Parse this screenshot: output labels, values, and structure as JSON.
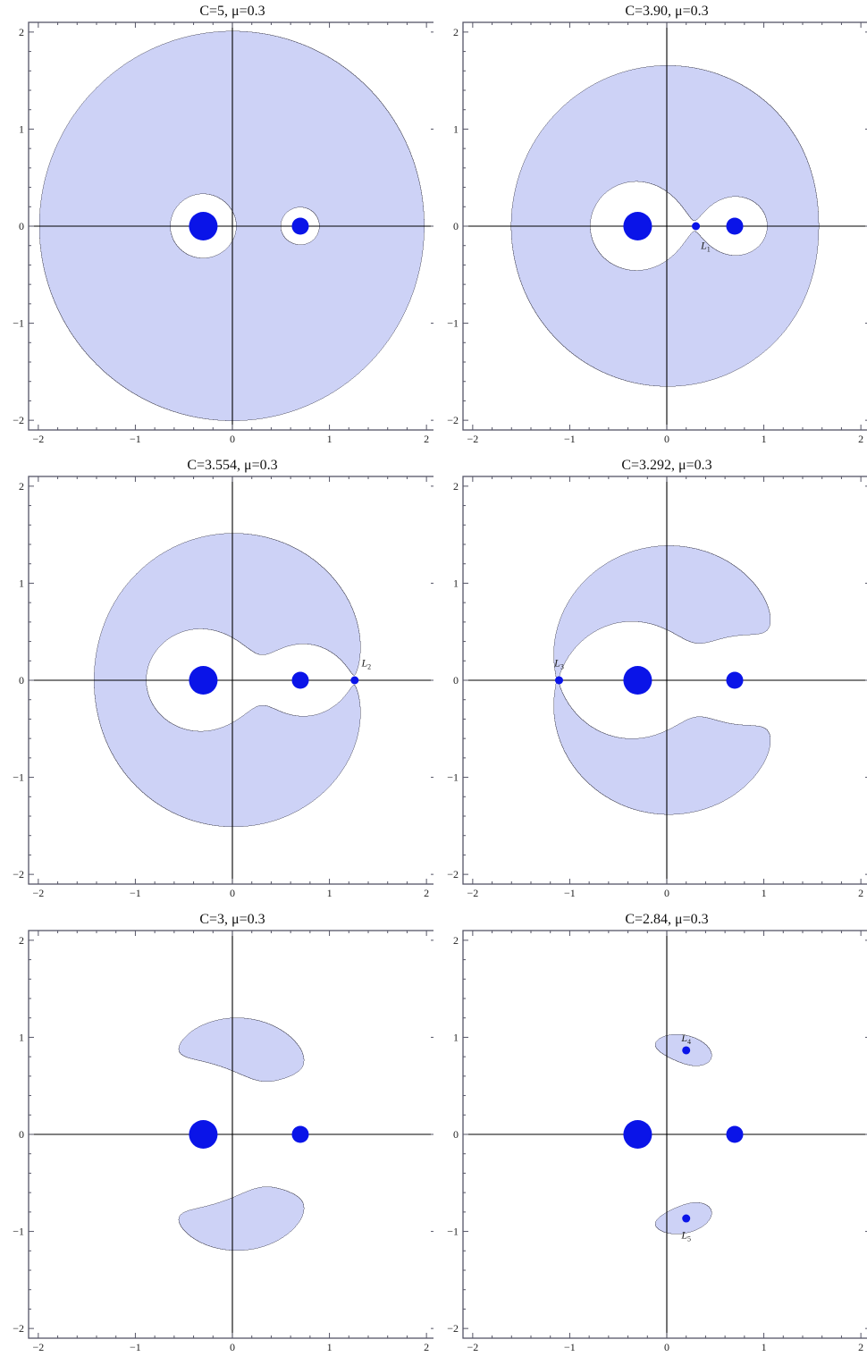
{
  "chart_data": [
    {
      "type": "contour",
      "title": "C=5, μ=0.3",
      "C": 5,
      "mu": 0.3,
      "xlim": [
        -2.1,
        2.1
      ],
      "ylim": [
        -2.1,
        2.1
      ],
      "xticks": [
        -2,
        -1,
        0,
        1,
        2
      ],
      "yticks": [
        -2,
        -1,
        0,
        1,
        2
      ],
      "tick_labels": [
        "−2",
        "−1",
        "0",
        "1",
        "2"
      ],
      "primaries": [
        {
          "x": -0.3,
          "label": ""
        },
        {
          "x": 0.7,
          "label": ""
        }
      ],
      "lagrange_points": []
    },
    {
      "type": "contour",
      "title": "C=3.90, μ=0.3",
      "C": 3.9,
      "mu": 0.3,
      "xlim": [
        -2.1,
        2.1
      ],
      "ylim": [
        -2.1,
        2.1
      ],
      "xticks": [
        -2,
        -1,
        0,
        1,
        2
      ],
      "yticks": [
        -2,
        -1,
        0,
        1,
        2
      ],
      "tick_labels": [
        "−2",
        "−1",
        "0",
        "1",
        "2"
      ],
      "primaries": [
        {
          "x": -0.3,
          "label": ""
        },
        {
          "x": 0.7,
          "label": ""
        }
      ],
      "lagrange_points": [
        {
          "name": "L",
          "sub": "1",
          "x": 0.3,
          "y": 0.0,
          "label_dx": 0.1,
          "label_dy": -0.2
        }
      ]
    },
    {
      "type": "contour",
      "title": "C=3.554, μ=0.3",
      "C": 3.554,
      "mu": 0.3,
      "xlim": [
        -2.1,
        2.1
      ],
      "ylim": [
        -2.1,
        2.1
      ],
      "xticks": [
        -2,
        -1,
        0,
        1,
        2
      ],
      "yticks": [
        -2,
        -1,
        0,
        1,
        2
      ],
      "tick_labels": [
        "−2",
        "−1",
        "0",
        "1",
        "2"
      ],
      "primaries": [
        {
          "x": -0.3,
          "label": ""
        },
        {
          "x": 0.7,
          "label": ""
        }
      ],
      "lagrange_points": [
        {
          "name": "L",
          "sub": "2",
          "x": 1.26,
          "y": 0.0,
          "label_dx": 0.12,
          "label_dy": 0.18
        }
      ]
    },
    {
      "type": "contour",
      "title": "C=3.292, μ=0.3",
      "C": 3.292,
      "mu": 0.3,
      "xlim": [
        -2.1,
        2.1
      ],
      "ylim": [
        -2.1,
        2.1
      ],
      "xticks": [
        -2,
        -1,
        0,
        1,
        2
      ],
      "yticks": [
        -2,
        -1,
        0,
        1,
        2
      ],
      "tick_labels": [
        "−2",
        "−1",
        "0",
        "1",
        "2"
      ],
      "primaries": [
        {
          "x": -0.3,
          "label": ""
        },
        {
          "x": 0.7,
          "label": ""
        }
      ],
      "lagrange_points": [
        {
          "name": "L",
          "sub": "3",
          "x": -1.11,
          "y": 0.0,
          "label_dx": 0.0,
          "label_dy": 0.18
        }
      ]
    },
    {
      "type": "contour",
      "title": "C=3, μ=0.3",
      "C": 3,
      "mu": 0.3,
      "xlim": [
        -2.1,
        2.1
      ],
      "ylim": [
        -2.1,
        2.1
      ],
      "xticks": [
        -2,
        -1,
        0,
        1,
        2
      ],
      "yticks": [
        -2,
        -1,
        0,
        1,
        2
      ],
      "tick_labels": [
        "−2",
        "−1",
        "0",
        "1",
        "2"
      ],
      "primaries": [
        {
          "x": -0.3,
          "label": ""
        },
        {
          "x": 0.7,
          "label": ""
        }
      ],
      "lagrange_points": []
    },
    {
      "type": "contour",
      "title": "C=2.84, μ=0.3",
      "C": 2.84,
      "mu": 0.3,
      "xlim": [
        -2.1,
        2.1
      ],
      "ylim": [
        -2.1,
        2.1
      ],
      "xticks": [
        -2,
        -1,
        0,
        1,
        2
      ],
      "yticks": [
        -2,
        -1,
        0,
        1,
        2
      ],
      "tick_labels": [
        "−2",
        "−1",
        "0",
        "1",
        "2"
      ],
      "primaries": [
        {
          "x": -0.3,
          "label": ""
        },
        {
          "x": 0.7,
          "label": ""
        }
      ],
      "lagrange_points": [
        {
          "name": "L",
          "sub": "4",
          "x": 0.2,
          "y": 0.866,
          "label_dx": 0.0,
          "label_dy": 0.13
        },
        {
          "name": "L",
          "sub": "5",
          "x": 0.2,
          "y": -0.866,
          "label_dx": 0.0,
          "label_dy": -0.17
        }
      ]
    }
  ],
  "colors": {
    "forbidden": "#cdd2f6",
    "allowed": "#ffffff",
    "contour": "#555566",
    "primary": "#0a14e8",
    "axis": "#000000",
    "frame": "#555566"
  }
}
